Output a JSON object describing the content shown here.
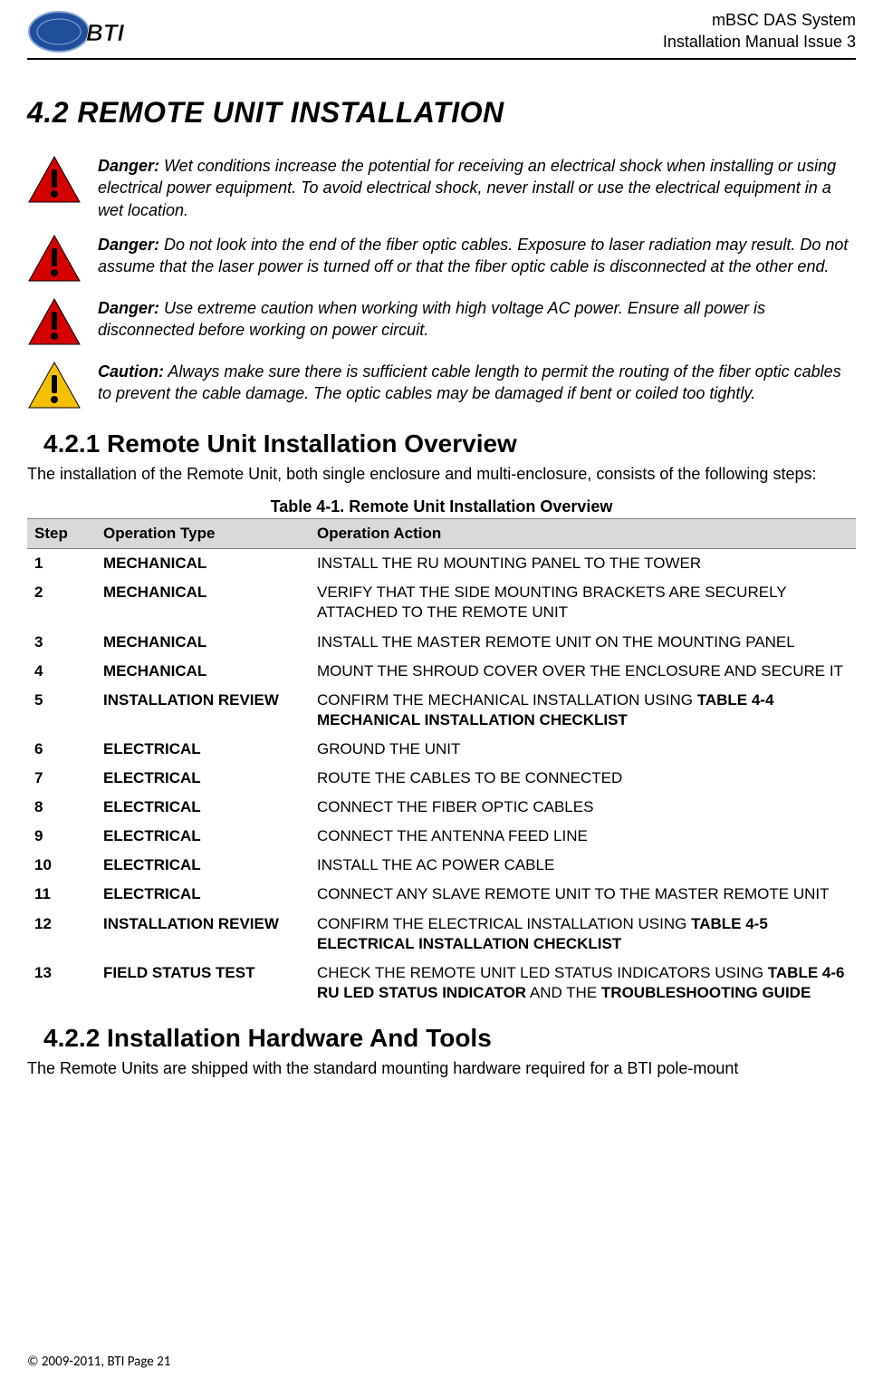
{
  "header": {
    "product": "mBSC DAS System",
    "doc_title": "Installation Manual Issue 3",
    "logo_text": "BTI"
  },
  "section": {
    "number_title": "4.2   REMOTE UNIT INSTALLATION"
  },
  "warnings": [
    {
      "lead": "Danger:",
      "text": " Wet conditions increase the potential for receiving an electrical shock when installing or using electrical power equipment. To avoid electrical shock, never install or use the electrical equipment in a wet location.",
      "color": "#d40000",
      "type": "danger"
    },
    {
      "lead": "Danger:",
      "text": " Do not look into the end of the fiber optic cables. Exposure to laser radiation may result. Do not assume that the laser power is turned off or that the fiber optic cable is disconnected at the other end.",
      "color": "#d40000",
      "type": "danger"
    },
    {
      "lead": "Danger:",
      "text": " Use extreme caution when working with high voltage AC power. Ensure all power is disconnected before working on power circuit.",
      "color": "#d40000",
      "type": "danger"
    },
    {
      "lead": "Caution:",
      "text": " Always make sure there is sufficient cable length to permit the routing of the fiber optic cables to prevent the cable damage. The optic cables may be damaged if bent or coiled too tightly.",
      "color": "#f5c000",
      "type": "caution"
    }
  ],
  "sub1": {
    "title": "4.2.1  Remote Unit Installation Overview",
    "intro": "The installation of the Remote Unit, both single enclosure and multi-enclosure, consists of the following steps:"
  },
  "table": {
    "caption": "Table 4-1. Remote Unit Installation Overview",
    "header_bg": "#d9d9d9",
    "border_color": "#808080",
    "columns": [
      "Step",
      "Operation Type",
      "Operation Action"
    ],
    "rows": [
      {
        "step": "1",
        "type": "MECHANICAL",
        "action": "INSTALL THE RU MOUNTING PANEL TO THE TOWER"
      },
      {
        "step": "2",
        "type": "MECHANICAL",
        "action": "VERIFY THAT THE SIDE MOUNTING BRACKETS ARE SECURELY ATTACHED TO THE REMOTE UNIT"
      },
      {
        "step": "3",
        "type": "MECHANICAL",
        "action": "INSTALL THE MASTER REMOTE UNIT ON THE MOUNTING PANEL"
      },
      {
        "step": "4",
        "type": "MECHANICAL",
        "action": "MOUNT THE SHROUD COVER OVER THE ENCLOSURE AND SECURE IT"
      },
      {
        "step": "5",
        "type": "INSTALLATION REVIEW",
        "action_pre": "CONFIRM THE MECHANICAL INSTALLATION USING ",
        "action_bold": "TABLE 4-4 MECHANICAL INSTALLATION CHECKLIST"
      },
      {
        "step": "6",
        "type": "ELECTRICAL",
        "action": "GROUND THE UNIT"
      },
      {
        "step": "7",
        "type": "ELECTRICAL",
        "action": "ROUTE THE CABLES TO BE CONNECTED"
      },
      {
        "step": "8",
        "type": "ELECTRICAL",
        "action": "CONNECT THE FIBER OPTIC CABLES"
      },
      {
        "step": "9",
        "type": "ELECTRICAL",
        "action": "CONNECT THE ANTENNA FEED LINE"
      },
      {
        "step": "10",
        "type": "ELECTRICAL",
        "action": "INSTALL THE AC POWER CABLE"
      },
      {
        "step": "11",
        "type": "ELECTRICAL",
        "action": "CONNECT ANY SLAVE REMOTE UNIT TO THE MASTER REMOTE UNIT"
      },
      {
        "step": "12",
        "type": "INSTALLATION REVIEW",
        "action_pre": "CONFIRM THE ELECTRICAL INSTALLATION USING ",
        "action_bold": "TABLE 4-5 ELECTRICAL INSTALLATION CHECKLIST"
      },
      {
        "step": "13",
        "type": "FIELD STATUS TEST",
        "action_pre": "CHECK THE REMOTE UNIT LED STATUS INDICATORS USING ",
        "action_bold": "TABLE 4-6  RU LED STATUS INDICATOR",
        "action_post": " AND THE ",
        "action_bold2": "TROUBLESHOOTING GUIDE"
      }
    ]
  },
  "sub2": {
    "title": "4.2.2  Installation Hardware And Tools",
    "intro": "The Remote Units are shipped with the standard mounting hardware required for a BTI pole-mount"
  },
  "footer": {
    "copyright": "© 2009-2011, BTI Page 21"
  },
  "colors": {
    "text": "#000000",
    "background": "#ffffff",
    "danger_fill": "#d40000",
    "caution_fill": "#f5c000",
    "bang_stroke": "#000000"
  }
}
